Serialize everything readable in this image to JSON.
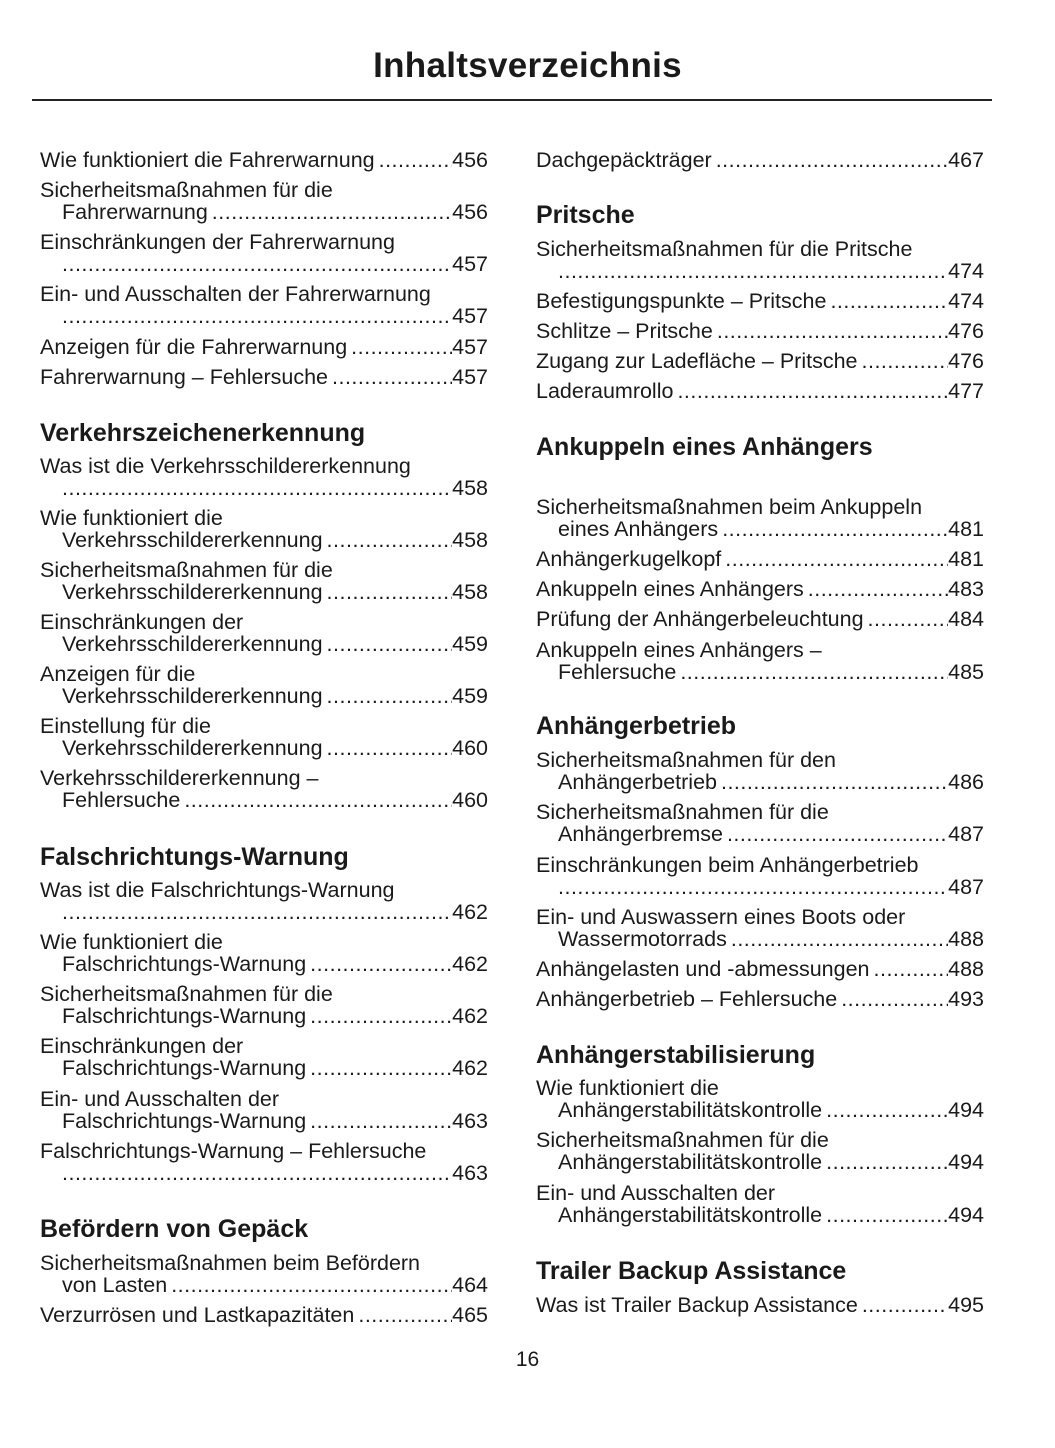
{
  "title": "Inhaltsverzeichnis",
  "page_number": "16",
  "columns": [
    {
      "items": [
        {
          "type": "entry",
          "lines": [
            "Wie funktioniert die Fahrerwarnung"
          ],
          "page": "456"
        },
        {
          "type": "entry",
          "lines": [
            "Sicherheitsmaßnahmen für die",
            "Fahrerwarnung"
          ],
          "page": "456"
        },
        {
          "type": "entry",
          "lines": [
            "Einschränkungen der Fahrerwarnung",
            ""
          ],
          "page": "457"
        },
        {
          "type": "entry",
          "lines": [
            "Ein- und Ausschalten der Fahrerwarnung",
            ""
          ],
          "page": "457"
        },
        {
          "type": "entry",
          "lines": [
            "Anzeigen für die Fahrerwarnung"
          ],
          "page": "457"
        },
        {
          "type": "entry",
          "lines": [
            "Fahrerwarnung – Fehlersuche"
          ],
          "page": "457"
        },
        {
          "type": "heading",
          "text": "Verkehrszeichenerkennung"
        },
        {
          "type": "entry",
          "lines": [
            "Was ist die Verkehrsschildererkennung",
            ""
          ],
          "page": "458"
        },
        {
          "type": "entry",
          "lines": [
            "Wie funktioniert die",
            "Verkehrsschildererkennung"
          ],
          "page": "458"
        },
        {
          "type": "entry",
          "lines": [
            "Sicherheitsmaßnahmen für die",
            "Verkehrsschildererkennung"
          ],
          "page": "458"
        },
        {
          "type": "entry",
          "lines": [
            "Einschränkungen der",
            "Verkehrsschildererkennung"
          ],
          "page": "459"
        },
        {
          "type": "entry",
          "lines": [
            "Anzeigen für die",
            "Verkehrsschildererkennung"
          ],
          "page": "459"
        },
        {
          "type": "entry",
          "lines": [
            "Einstellung für die",
            "Verkehrsschildererkennung"
          ],
          "page": "460"
        },
        {
          "type": "entry",
          "lines": [
            "Verkehrsschildererkennung –",
            "Fehlersuche"
          ],
          "page": "460"
        },
        {
          "type": "heading",
          "text": "Falschrichtungs-Warnung"
        },
        {
          "type": "entry",
          "lines": [
            "Was ist die Falschrichtungs-Warnung",
            ""
          ],
          "page": "462"
        },
        {
          "type": "entry",
          "lines": [
            "Wie funktioniert die",
            "Falschrichtungs-Warnung"
          ],
          "page": "462"
        },
        {
          "type": "entry",
          "lines": [
            "Sicherheitsmaßnahmen für die",
            "Falschrichtungs-Warnung"
          ],
          "page": "462"
        },
        {
          "type": "entry",
          "lines": [
            "Einschränkungen der",
            "Falschrichtungs-Warnung"
          ],
          "page": "462"
        },
        {
          "type": "entry",
          "lines": [
            "Ein- und Ausschalten der",
            "Falschrichtungs-Warnung"
          ],
          "page": "463"
        },
        {
          "type": "entry",
          "lines": [
            "Falschrichtungs-Warnung – Fehlersuche",
            ""
          ],
          "page": "463"
        },
        {
          "type": "heading",
          "text": "Befördern von Gepäck"
        },
        {
          "type": "entry",
          "lines": [
            "Sicherheitsmaßnahmen beim Befördern",
            "von Lasten"
          ],
          "page": "464"
        },
        {
          "type": "entry",
          "lines": [
            "Verzurrösen und Lastkapazitäten"
          ],
          "page": "465"
        }
      ]
    },
    {
      "items": [
        {
          "type": "entry",
          "lines": [
            "Dachgepäckträger"
          ],
          "page": "467"
        },
        {
          "type": "heading",
          "text": "Pritsche"
        },
        {
          "type": "entry",
          "lines": [
            "Sicherheitsmaßnahmen für die Pritsche",
            ""
          ],
          "page": "474"
        },
        {
          "type": "entry",
          "lines": [
            "Befestigungspunkte – Pritsche"
          ],
          "page": "474"
        },
        {
          "type": "entry",
          "lines": [
            "Schlitze – Pritsche"
          ],
          "page": "476"
        },
        {
          "type": "entry",
          "lines": [
            "Zugang zur Ladefläche – Pritsche"
          ],
          "page": "476"
        },
        {
          "type": "entry",
          "lines": [
            "Laderaumrollo"
          ],
          "page": "477"
        },
        {
          "type": "heading",
          "text": "Ankuppeln eines Anhängers"
        },
        {
          "type": "entry",
          "lines": [
            "Sicherheitsmaßnahmen beim Ankuppeln",
            "eines Anhängers"
          ],
          "page": "481"
        },
        {
          "type": "entry",
          "lines": [
            "Anhängerkugelkopf"
          ],
          "page": "481"
        },
        {
          "type": "entry",
          "lines": [
            "Ankuppeln eines Anhängers"
          ],
          "page": "483"
        },
        {
          "type": "entry",
          "lines": [
            "Prüfung der Anhängerbeleuchtung"
          ],
          "page": "484"
        },
        {
          "type": "entry",
          "lines": [
            "Ankuppeln eines Anhängers –",
            "Fehlersuche"
          ],
          "page": "485"
        },
        {
          "type": "heading",
          "text": "Anhängerbetrieb"
        },
        {
          "type": "entry",
          "lines": [
            "Sicherheitsmaßnahmen für den",
            "Anhängerbetrieb"
          ],
          "page": "486"
        },
        {
          "type": "entry",
          "lines": [
            "Sicherheitsmaßnahmen für die",
            "Anhängerbremse"
          ],
          "page": "487"
        },
        {
          "type": "entry",
          "lines": [
            "Einschränkungen beim Anhängerbetrieb",
            ""
          ],
          "page": "487"
        },
        {
          "type": "entry",
          "lines": [
            "Ein- und Auswassern eines Boots oder",
            "Wassermotorrads"
          ],
          "page": "488"
        },
        {
          "type": "entry",
          "lines": [
            "Anhängelasten und -abmessungen"
          ],
          "page": "488"
        },
        {
          "type": "entry",
          "lines": [
            "Anhängerbetrieb – Fehlersuche"
          ],
          "page": "493"
        },
        {
          "type": "heading",
          "text": "Anhängerstabilisierung"
        },
        {
          "type": "entry",
          "lines": [
            "Wie funktioniert die",
            "Anhängerstabilitätskontrolle"
          ],
          "page": "494"
        },
        {
          "type": "entry",
          "lines": [
            "Sicherheitsmaßnahmen für die",
            "Anhängerstabilitätskontrolle"
          ],
          "page": "494"
        },
        {
          "type": "entry",
          "lines": [
            "Ein- und Ausschalten der",
            "Anhängerstabilitätskontrolle"
          ],
          "page": "494"
        },
        {
          "type": "heading",
          "text": "Trailer Backup Assistance"
        },
        {
          "type": "entry",
          "lines": [
            "Was ist Trailer Backup Assistance"
          ],
          "page": "495"
        }
      ]
    }
  ]
}
